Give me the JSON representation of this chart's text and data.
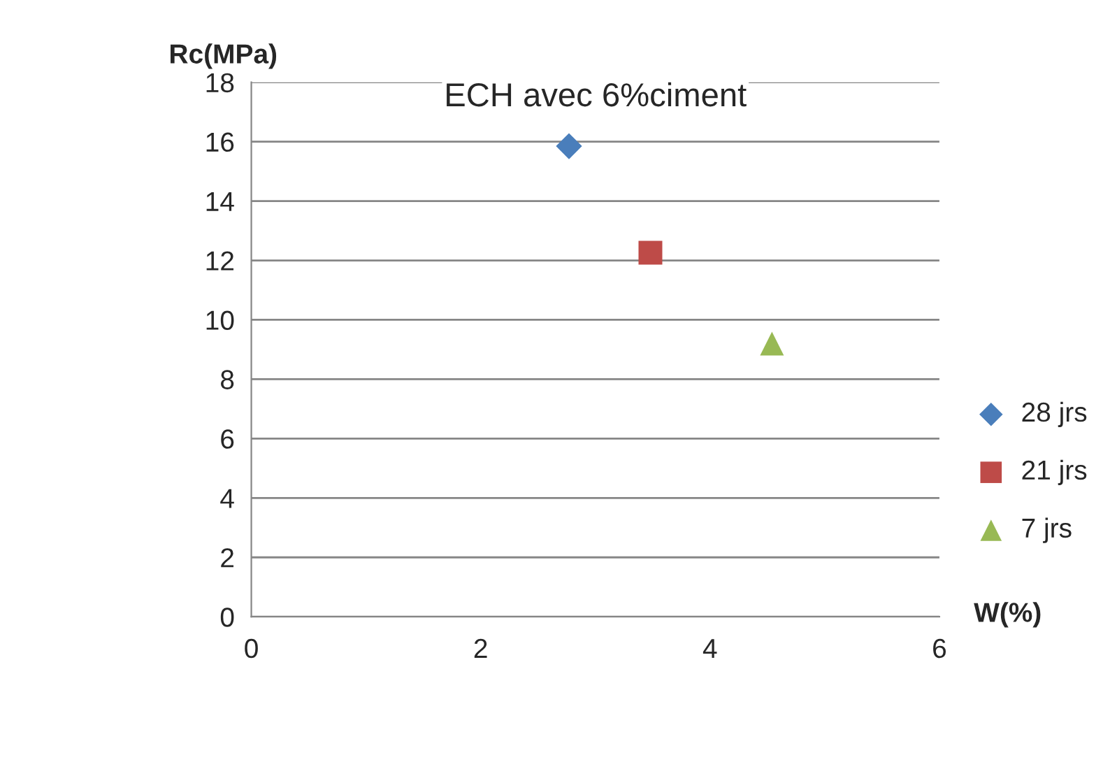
{
  "chart_data": {
    "type": "scatter",
    "title": "ECH avec 6%ciment",
    "xlabel": "W(%)",
    "ylabel": "Rc(MPa)",
    "xlim": [
      0,
      6
    ],
    "xticks": [
      0,
      2,
      4,
      6
    ],
    "ylim": [
      0,
      18
    ],
    "yticks": [
      0,
      2,
      4,
      6,
      8,
      10,
      12,
      14,
      16,
      18
    ],
    "grid": "y",
    "legend": "right",
    "series": [
      {
        "name": "28 jrs",
        "color": "#4a7ebb",
        "marker": "diamond",
        "x": [
          2.77
        ],
        "values": [
          15.85
        ]
      },
      {
        "name": "21 jrs",
        "color": "#be4b48",
        "marker": "square",
        "x": [
          3.48
        ],
        "values": [
          12.26
        ]
      },
      {
        "name": "7 jrs",
        "color": "#98b954",
        "marker": "triangle",
        "x": [
          4.54
        ],
        "values": [
          9.2
        ]
      }
    ]
  }
}
